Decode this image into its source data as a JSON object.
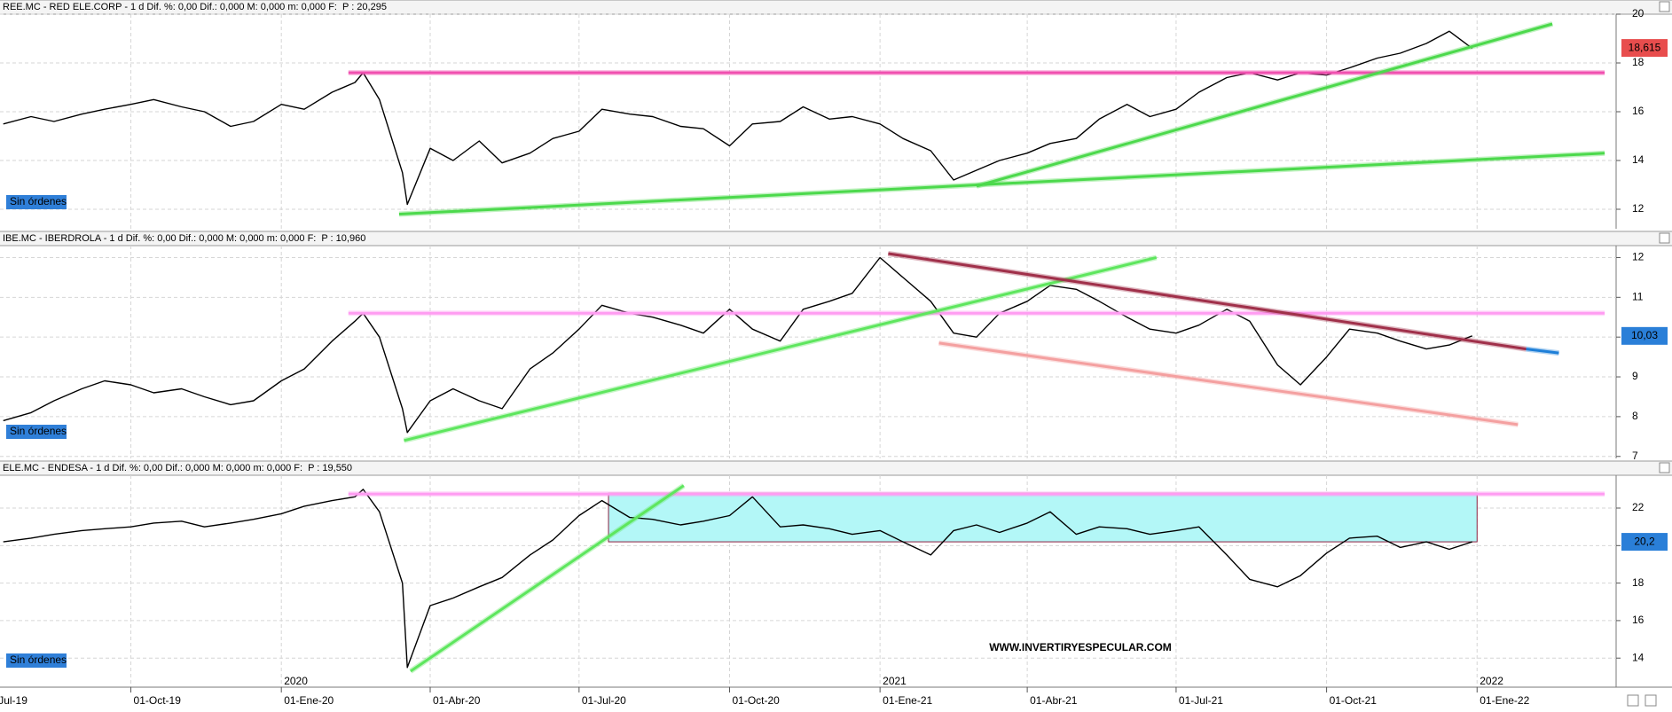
{
  "chart_data": [
    {
      "type": "line",
      "title": "REE.MC - RED ELE.CORP - 1 d Dif. %: 0,00 Dif.: 0,000 M: 0,000 m: 0,000 F:",
      "price_label": "P : 20,295",
      "note": "Sin órdenes",
      "x": [
        "2019-07-15",
        "2019-08-01",
        "2019-08-15",
        "2019-09-01",
        "2019-09-15",
        "2019-10-01",
        "2019-10-15",
        "2019-11-01",
        "2019-11-15",
        "2019-12-01",
        "2019-12-15",
        "2020-01-01",
        "2020-01-15",
        "2020-02-01",
        "2020-02-15",
        "2020-02-20",
        "2020-03-01",
        "2020-03-15",
        "2020-03-18",
        "2020-04-01",
        "2020-04-15",
        "2020-05-01",
        "2020-05-15",
        "2020-06-01",
        "2020-06-15",
        "2020-07-01",
        "2020-07-15",
        "2020-08-01",
        "2020-08-15",
        "2020-09-01",
        "2020-09-15",
        "2020-10-01",
        "2020-10-15",
        "2020-11-01",
        "2020-11-15",
        "2020-12-01",
        "2020-12-15",
        "2021-01-01",
        "2021-01-15",
        "2021-02-01",
        "2021-02-15",
        "2021-03-01",
        "2021-03-15",
        "2021-04-01",
        "2021-04-15",
        "2021-05-01",
        "2021-05-15",
        "2021-06-01",
        "2021-06-15",
        "2021-07-01",
        "2021-07-15",
        "2021-08-01",
        "2021-08-15",
        "2021-09-01",
        "2021-09-15",
        "2021-10-01",
        "2021-10-15",
        "2021-11-01",
        "2021-11-15",
        "2021-12-01",
        "2021-12-15",
        "2021-12-29"
      ],
      "values": [
        15.5,
        15.8,
        15.6,
        15.9,
        16.1,
        16.3,
        16.5,
        16.2,
        16.0,
        15.4,
        15.6,
        16.3,
        16.1,
        16.8,
        17.2,
        17.6,
        16.5,
        13.5,
        12.2,
        14.5,
        14.0,
        14.8,
        13.9,
        14.3,
        14.9,
        15.2,
        16.1,
        15.9,
        15.8,
        15.4,
        15.3,
        14.6,
        15.5,
        15.6,
        16.2,
        15.7,
        15.8,
        15.5,
        14.9,
        14.4,
        13.2,
        13.6,
        14.0,
        14.3,
        14.7,
        14.9,
        15.7,
        16.3,
        15.8,
        16.1,
        16.8,
        17.4,
        17.6,
        17.3,
        17.6,
        17.5,
        17.8,
        18.2,
        18.4,
        18.8,
        19.3,
        18.6
      ],
      "color": "#000000",
      "xlim": [
        "2019-07-13",
        "2022-03-27"
      ],
      "ylim": [
        11.2,
        20
      ],
      "yticks": [
        12,
        14,
        16,
        18,
        20
      ],
      "grid": true,
      "last_price": {
        "value": 18.615,
        "label": "18,615",
        "color": "#e84d4d"
      },
      "lines": [
        {
          "x": [
            "2020-02-11",
            "2022-03-20"
          ],
          "y": [
            17.6,
            17.6
          ],
          "color": "#f050b0"
        },
        {
          "x": [
            "2020-03-13",
            "2022-03-20"
          ],
          "y": [
            11.8,
            14.3
          ],
          "color": "#4cd94c"
        },
        {
          "x": [
            "2021-03-01",
            "2022-02-16"
          ],
          "y": [
            12.95,
            19.6
          ],
          "color": "#4cd94c"
        }
      ]
    },
    {
      "type": "line",
      "title": "IBE.MC - IBERDROLA - 1 d Dif. %: 0,00 Dif.: 0,000 M: 0,000 m: 0,000 F:",
      "price_label": "P : 10,960",
      "note": "Sin órdenes",
      "x": [
        "2019-07-15",
        "2019-08-01",
        "2019-08-15",
        "2019-09-01",
        "2019-09-15",
        "2019-10-01",
        "2019-10-15",
        "2019-11-01",
        "2019-11-15",
        "2019-12-01",
        "2019-12-15",
        "2020-01-01",
        "2020-01-15",
        "2020-02-01",
        "2020-02-15",
        "2020-02-20",
        "2020-03-01",
        "2020-03-15",
        "2020-03-18",
        "2020-04-01",
        "2020-04-15",
        "2020-05-01",
        "2020-05-15",
        "2020-06-01",
        "2020-06-15",
        "2020-07-01",
        "2020-07-15",
        "2020-08-01",
        "2020-08-15",
        "2020-09-01",
        "2020-09-15",
        "2020-10-01",
        "2020-10-15",
        "2020-11-01",
        "2020-11-15",
        "2020-12-01",
        "2020-12-15",
        "2021-01-01",
        "2021-01-15",
        "2021-02-01",
        "2021-02-15",
        "2021-03-01",
        "2021-03-15",
        "2021-04-01",
        "2021-04-15",
        "2021-05-01",
        "2021-05-15",
        "2021-06-01",
        "2021-06-15",
        "2021-07-01",
        "2021-07-15",
        "2021-08-01",
        "2021-08-15",
        "2021-09-01",
        "2021-09-15",
        "2021-10-01",
        "2021-10-15",
        "2021-11-01",
        "2021-11-15",
        "2021-12-01",
        "2021-12-15",
        "2021-12-29"
      ],
      "values": [
        7.9,
        8.1,
        8.4,
        8.7,
        8.9,
        8.8,
        8.6,
        8.7,
        8.5,
        8.3,
        8.4,
        8.9,
        9.2,
        9.9,
        10.4,
        10.6,
        10.0,
        8.2,
        7.6,
        8.4,
        8.7,
        8.4,
        8.2,
        9.2,
        9.6,
        10.2,
        10.8,
        10.6,
        10.5,
        10.3,
        10.1,
        10.7,
        10.2,
        9.9,
        10.7,
        10.9,
        11.1,
        12.0,
        11.5,
        10.9,
        10.1,
        10.0,
        10.6,
        10.9,
        11.3,
        11.2,
        10.9,
        10.5,
        10.2,
        10.1,
        10.3,
        10.7,
        10.4,
        9.3,
        8.8,
        9.5,
        10.2,
        10.1,
        9.9,
        9.7,
        9.8,
        10.03
      ],
      "color": "#000000",
      "xlim": [
        "2019-07-13",
        "2022-03-27"
      ],
      "ylim": [
        6.95,
        12.3
      ],
      "yticks": [
        7,
        8,
        9,
        10,
        11,
        12
      ],
      "grid": true,
      "last_price": {
        "value": 10.03,
        "label": "10,03",
        "color": "#2a7fd8"
      },
      "lines": [
        {
          "x": [
            "2020-02-11",
            "2022-03-20"
          ],
          "y": [
            10.6,
            10.6
          ],
          "color": "#ff9cf2"
        },
        {
          "x": [
            "2020-03-16",
            "2021-06-19"
          ],
          "y": [
            7.4,
            12.0
          ],
          "color": "#5ee65e"
        },
        {
          "x": [
            "2021-01-06",
            "2022-01-31"
          ],
          "y": [
            12.1,
            9.7
          ],
          "color": "#a0304a"
        },
        {
          "x": [
            "2022-01-31",
            "2022-02-20"
          ],
          "y": [
            9.7,
            9.6
          ],
          "color": "#1e7fd8"
        },
        {
          "x": [
            "2021-02-06",
            "2022-01-26"
          ],
          "y": [
            9.85,
            7.8
          ],
          "color": "#f4a0a0"
        }
      ]
    },
    {
      "type": "line",
      "title": "ELE.MC - ENDESA - 1 d Dif. %: 0,00 Dif.: 0,000 M: 0,000 m: 0,000 F:",
      "price_label": "P : 19,550",
      "note": "Sin órdenes",
      "annotation": "WWW.INVERTIRYESPECULAR.COM",
      "x": [
        "2019-07-15",
        "2019-08-01",
        "2019-08-15",
        "2019-09-01",
        "2019-09-15",
        "2019-10-01",
        "2019-10-15",
        "2019-11-01",
        "2019-11-15",
        "2019-12-01",
        "2019-12-15",
        "2020-01-01",
        "2020-01-15",
        "2020-02-01",
        "2020-02-15",
        "2020-02-20",
        "2020-03-01",
        "2020-03-15",
        "2020-03-18",
        "2020-04-01",
        "2020-04-15",
        "2020-05-01",
        "2020-05-15",
        "2020-06-01",
        "2020-06-15",
        "2020-07-01",
        "2020-07-15",
        "2020-08-01",
        "2020-08-15",
        "2020-09-01",
        "2020-09-15",
        "2020-10-01",
        "2020-10-15",
        "2020-11-01",
        "2020-11-15",
        "2020-12-01",
        "2020-12-15",
        "2021-01-01",
        "2021-01-15",
        "2021-02-01",
        "2021-02-15",
        "2021-03-01",
        "2021-03-15",
        "2021-04-01",
        "2021-04-15",
        "2021-05-01",
        "2021-05-15",
        "2021-06-01",
        "2021-06-15",
        "2021-07-01",
        "2021-07-15",
        "2021-08-01",
        "2021-08-15",
        "2021-09-01",
        "2021-09-15",
        "2021-10-01",
        "2021-10-15",
        "2021-11-01",
        "2021-11-15",
        "2021-12-01",
        "2021-12-15",
        "2021-12-29"
      ],
      "values": [
        20.2,
        20.4,
        20.6,
        20.8,
        20.9,
        21.0,
        21.2,
        21.3,
        21.0,
        21.2,
        21.4,
        21.7,
        22.1,
        22.4,
        22.6,
        23.0,
        21.8,
        18.0,
        13.5,
        16.8,
        17.2,
        17.8,
        18.3,
        19.5,
        20.3,
        21.6,
        22.4,
        21.5,
        21.4,
        21.1,
        21.3,
        21.6,
        22.6,
        21.0,
        21.1,
        20.9,
        20.6,
        20.8,
        20.2,
        19.5,
        20.8,
        21.1,
        20.7,
        21.2,
        21.8,
        20.6,
        21.0,
        20.9,
        20.6,
        20.8,
        21.0,
        19.5,
        18.2,
        17.8,
        18.4,
        19.6,
        20.4,
        20.5,
        19.9,
        20.2,
        19.8,
        20.2
      ],
      "color": "#000000",
      "xlim": [
        "2019-07-13",
        "2022-03-27"
      ],
      "ylim": [
        12.45,
        23.75
      ],
      "yticks": [
        14,
        16,
        18,
        20,
        22
      ],
      "grid": true,
      "last_price": {
        "value": 20.2,
        "label": "20,2",
        "color": "#2a7fd8"
      },
      "lines": [
        {
          "x": [
            "2020-02-11",
            "2022-03-20"
          ],
          "y": [
            22.75,
            22.75
          ],
          "color": "#ff9cf2"
        },
        {
          "x": [
            "2020-03-20",
            "2020-09-03"
          ],
          "y": [
            13.3,
            23.2
          ],
          "color": "#5ee65e"
        }
      ],
      "boxes": [
        {
          "x": [
            "2020-07-19",
            "2022-01-01"
          ],
          "y": [
            20.2,
            22.8
          ],
          "color": "#b3f7f7"
        }
      ],
      "xticks": [
        {
          "value": "2019-07-01",
          "label": "01-Jul-19"
        },
        {
          "value": "2019-10-01",
          "label": "01-Oct-19"
        },
        {
          "value": "2020-01-01",
          "label": "01-Ene-20"
        },
        {
          "value": "2020-04-01",
          "label": "01-Abr-20"
        },
        {
          "value": "2020-07-01",
          "label": "01-Jul-20"
        },
        {
          "value": "2020-10-01",
          "label": "01-Oct-20"
        },
        {
          "value": "2021-01-01",
          "label": "01-Ene-21"
        },
        {
          "value": "2021-04-01",
          "label": "01-Abr-21"
        },
        {
          "value": "2021-07-01",
          "label": "01-Jul-21"
        },
        {
          "value": "2021-10-01",
          "label": "01-Oct-21"
        },
        {
          "value": "2022-01-01",
          "label": "01-Ene-22"
        }
      ],
      "year_ticks": [
        {
          "value": "2020-01-01",
          "label": "2020"
        },
        {
          "value": "2021-01-01",
          "label": "2021"
        },
        {
          "value": "2022-01-01",
          "label": "2022"
        }
      ]
    }
  ]
}
